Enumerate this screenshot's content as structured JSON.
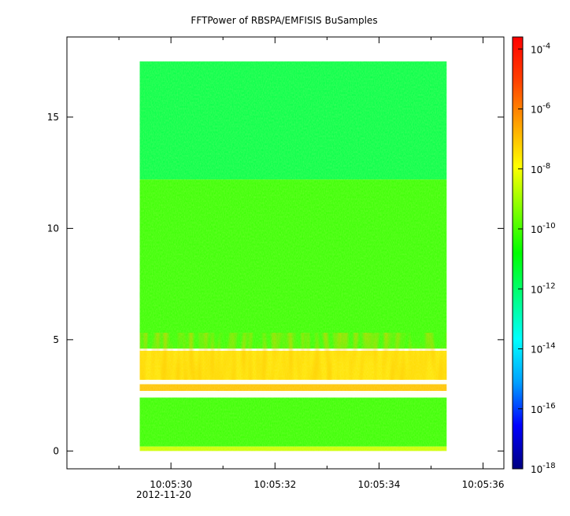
{
  "chart_data": {
    "type": "heatmap",
    "title": "FFTPower of RBSPA/EMFISIS  BuSamples",
    "xlabel": "",
    "ylabel": "",
    "x_range": [
      "10:05:28.0",
      "10:05:36.4"
    ],
    "data_x_range": [
      "10:05:29.4",
      "10:05:35.3"
    ],
    "ylim": [
      -0.8,
      18.6
    ],
    "data_ylim": [
      0,
      17.5
    ],
    "x_major_ticks": [
      {
        "value": "10:05:30",
        "label": "10:05:30"
      },
      {
        "value": "10:05:32",
        "label": "10:05:32"
      },
      {
        "value": "10:05:34",
        "label": "10:05:34"
      },
      {
        "value": "10:05:36",
        "label": "10:05:36"
      }
    ],
    "x_minor_ticks": [
      "10:05:29",
      "10:05:31",
      "10:05:33",
      "10:05:35"
    ],
    "x_date_label": "2012-11-20",
    "y_ticks": [
      0,
      5,
      10,
      15
    ],
    "colorbar": {
      "scale": "log",
      "range_exponent": [
        -18,
        -3.6
      ],
      "tick_exponents": [
        -18,
        -16,
        -14,
        -12,
        -10,
        -8,
        -6,
        -4
      ],
      "tick_base": "10",
      "colors": [
        "#000080",
        "#0000ff",
        "#00a0ff",
        "#00ffff",
        "#00ff80",
        "#00ff00",
        "#80ff00",
        "#ffff00",
        "#ffa000",
        "#ff4000",
        "#ff0000"
      ]
    },
    "features": [
      {
        "name": "background-upper",
        "y": [
          12.2,
          17.5
        ],
        "log_power": -11.6
      },
      {
        "name": "background-middle",
        "y": [
          4.6,
          12.2
        ],
        "log_power": -10.2
      },
      {
        "name": "emission-band",
        "y": [
          3.2,
          4.5
        ],
        "log_power": -7.5
      },
      {
        "name": "narrow-line",
        "y": [
          2.7,
          3.0
        ],
        "log_power": -7.0
      },
      {
        "name": "background-lower",
        "y": [
          0.2,
          2.4
        ],
        "log_power": -10.2
      },
      {
        "name": "low-frequency-edge",
        "y": [
          0,
          0.2
        ],
        "log_power": -8.5
      }
    ],
    "grid": false,
    "legend": "none"
  }
}
